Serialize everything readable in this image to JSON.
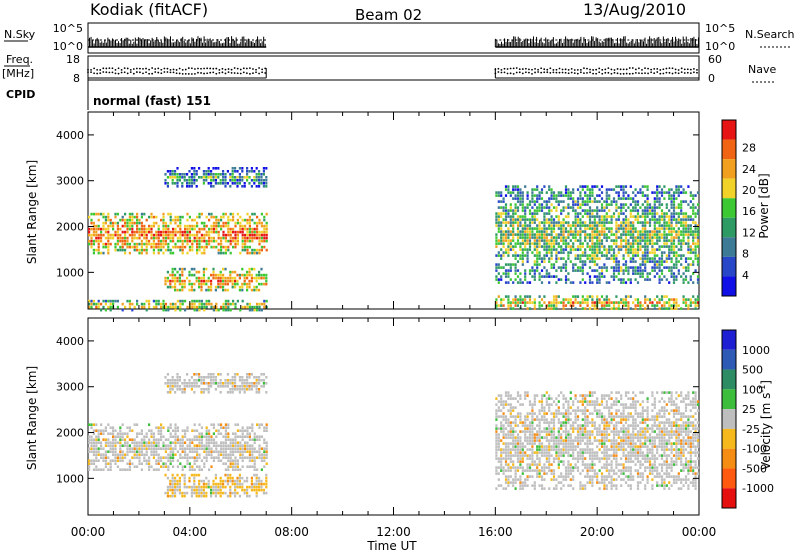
{
  "header": {
    "station": "Kodiak (fitACF)",
    "beam": "Beam 02",
    "date": "13/Aug/2010"
  },
  "noise_panel": {
    "left_label": "N.Sky",
    "left_ticks": [
      "10^5",
      "10^0"
    ],
    "right_label": "N.Search",
    "right_ticks": [
      "10^5",
      "10^0"
    ]
  },
  "freq_panel": {
    "left_label_1": "Freq.",
    "left_label_2": "[MHz]",
    "left_ticks": [
      "18",
      "8"
    ],
    "right_label": "Nave",
    "right_ticks": [
      "60",
      "0"
    ]
  },
  "cpid": {
    "label": "CPID",
    "value": "normal (fast) 151"
  },
  "colors": {
    "power": [
      "#1010e6",
      "#2846c8",
      "#3c7a96",
      "#2e9a64",
      "#3cc832",
      "#f0d228",
      "#f0a01e",
      "#f06414",
      "#e61414"
    ],
    "velocity": [
      "#1e1ed2",
      "#2d5ab4",
      "#2d8c64",
      "#3cbe3c",
      "#bebebe",
      "#f5b91e",
      "#f58c14",
      "#ff5a0f",
      "#e60f0f"
    ]
  },
  "chart_data": [
    {
      "type": "heatmap",
      "name": "Power",
      "xlabel": "",
      "ylabel": "Slant Range [km]",
      "xlim": [
        "00:00",
        "00:00"
      ],
      "ylim": [
        200,
        4500
      ],
      "yticks": [
        "1000",
        "2000",
        "3000",
        "4000"
      ],
      "data_gap": [
        "07:00",
        "16:00"
      ],
      "colorbar": {
        "label": "Power [dB]",
        "ticks": [
          "4",
          "8",
          "12",
          "16",
          "20",
          "24",
          "28"
        ]
      },
      "echo_bands": [
        {
          "t_start": 0.0,
          "t_end": 7.0,
          "range_start": 1400,
          "range_end": 2300,
          "power_db": 24
        },
        {
          "t_start": 0.0,
          "t_end": 7.0,
          "range_start": 200,
          "range_end": 400,
          "power_db": 20
        },
        {
          "t_start": 3.0,
          "t_end": 7.0,
          "range_start": 600,
          "range_end": 1100,
          "power_db": 22
        },
        {
          "t_start": 3.0,
          "t_end": 7.0,
          "range_start": 2900,
          "range_end": 3300,
          "power_db": 12
        },
        {
          "t_start": 16.0,
          "t_end": 24.0,
          "range_start": 800,
          "range_end": 2900,
          "power_db": 16
        },
        {
          "t_start": 16.0,
          "t_end": 24.0,
          "range_start": 200,
          "range_end": 500,
          "power_db": 22
        }
      ]
    },
    {
      "type": "heatmap",
      "name": "Velocity",
      "xlabel": "Time UT",
      "ylabel": "Slant Range [km]",
      "xticks": [
        "00:00",
        "04:00",
        "08:00",
        "12:00",
        "16:00",
        "20:00",
        "00:00"
      ],
      "ylim": [
        200,
        4500
      ],
      "yticks": [
        "1000",
        "2000",
        "3000",
        "4000"
      ],
      "data_gap": [
        "07:00",
        "16:00"
      ],
      "colorbar": {
        "label": "Velocity [m s",
        "label_sup": "-1",
        "label_tail": "]",
        "ticks": [
          "1000",
          "500",
          "100",
          "25",
          "-25",
          "-100",
          "-500",
          "-1000"
        ]
      },
      "echo_bands": [
        {
          "t_start": 0.0,
          "t_end": 7.0,
          "range_start": 1200,
          "range_end": 2200,
          "velocity": 0
        },
        {
          "t_start": 3.0,
          "t_end": 7.0,
          "range_start": 600,
          "range_end": 1100,
          "velocity": -50
        },
        {
          "t_start": 3.0,
          "t_end": 7.0,
          "range_start": 2900,
          "range_end": 3300,
          "velocity": 0
        },
        {
          "t_start": 16.0,
          "t_end": 24.0,
          "range_start": 800,
          "range_end": 2900,
          "velocity": 0
        }
      ]
    }
  ]
}
